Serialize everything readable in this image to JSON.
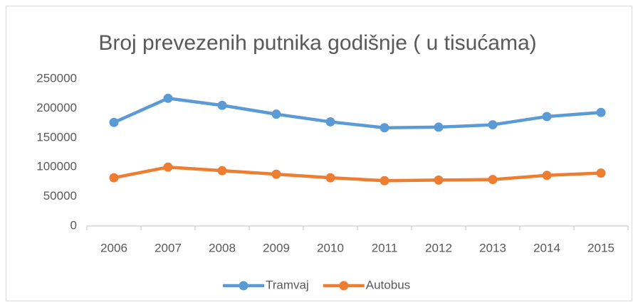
{
  "chart_data": {
    "type": "line",
    "title": "Broj prevezenih putnika godišnje ( u tisućama)",
    "categories": [
      "2006",
      "2007",
      "2008",
      "2009",
      "2010",
      "2011",
      "2012",
      "2013",
      "2014",
      "2015"
    ],
    "series": [
      {
        "name": "Tramvaj",
        "color": "#5b9bd5",
        "values": [
          176000,
          217000,
          205000,
          190000,
          177000,
          167000,
          168000,
          172000,
          186000,
          193000
        ]
      },
      {
        "name": "Autobus",
        "color": "#ed7d31",
        "values": [
          82000,
          100000,
          94000,
          88000,
          82000,
          77000,
          78000,
          79000,
          86000,
          90000
        ]
      }
    ],
    "ylim": [
      0,
      250000
    ],
    "yticks": [
      0,
      50000,
      100000,
      150000,
      200000,
      250000
    ],
    "grid": false,
    "legend": "bottom"
  }
}
